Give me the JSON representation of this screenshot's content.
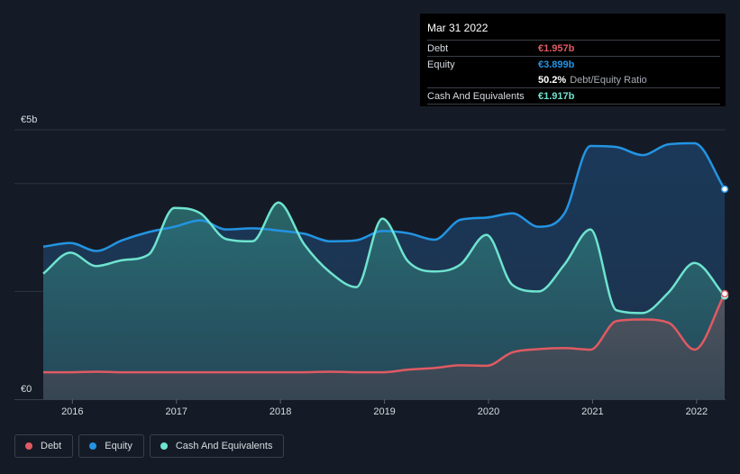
{
  "tooltip": {
    "date": "Mar 31 2022",
    "debt_label": "Debt",
    "debt_value": "€1.957b",
    "equity_label": "Equity",
    "equity_value": "€3.899b",
    "ratio_value": "50.2%",
    "ratio_label": "Debt/Equity Ratio",
    "cash_label": "Cash And Equivalents",
    "cash_value": "€1.917b"
  },
  "legend": {
    "debt": "Debt",
    "equity": "Equity",
    "cash": "Cash And Equivalents"
  },
  "colors": {
    "background": "#151b26",
    "debt": "#e05a62",
    "equity": "#2394e2",
    "cash": "#6fe3cf",
    "grid": "#2e3440"
  },
  "chart_data": {
    "type": "area",
    "title": "",
    "xlabel": "",
    "ylabel": "",
    "ylim": [
      0,
      5
    ],
    "xlim": [
      2015.72,
      2022.27
    ],
    "y_ticks": [
      {
        "value": 0,
        "label": "€0"
      },
      {
        "value": 5,
        "label": "€5b"
      }
    ],
    "y_gridlines": [
      2,
      4,
      5
    ],
    "x_ticks": [
      {
        "value": 2016,
        "label": "2016"
      },
      {
        "value": 2017,
        "label": "2017"
      },
      {
        "value": 2018,
        "label": "2018"
      },
      {
        "value": 2019,
        "label": "2019"
      },
      {
        "value": 2020,
        "label": "2020"
      },
      {
        "value": 2021,
        "label": "2021"
      },
      {
        "value": 2022,
        "label": "2022"
      }
    ],
    "units": "€ billions",
    "series": [
      {
        "name": "Equity",
        "color": "#2394e2",
        "points": [
          [
            2015.72,
            2.83
          ],
          [
            2015.98,
            2.9
          ],
          [
            2016.23,
            2.75
          ],
          [
            2016.48,
            2.95
          ],
          [
            2016.73,
            3.1
          ],
          [
            2016.98,
            3.2
          ],
          [
            2017.23,
            3.32
          ],
          [
            2017.48,
            3.15
          ],
          [
            2017.73,
            3.17
          ],
          [
            2017.98,
            3.13
          ],
          [
            2018.23,
            3.07
          ],
          [
            2018.48,
            2.93
          ],
          [
            2018.73,
            2.95
          ],
          [
            2018.98,
            3.12
          ],
          [
            2019.23,
            3.08
          ],
          [
            2019.48,
            2.96
          ],
          [
            2019.73,
            3.33
          ],
          [
            2019.98,
            3.37
          ],
          [
            2020.23,
            3.45
          ],
          [
            2020.48,
            3.2
          ],
          [
            2020.73,
            3.45
          ],
          [
            2020.98,
            4.7
          ],
          [
            2021.23,
            4.68
          ],
          [
            2021.48,
            4.53
          ],
          [
            2021.73,
            4.73
          ],
          [
            2021.98,
            4.75
          ],
          [
            2022.27,
            3.899
          ]
        ]
      },
      {
        "name": "Cash And Equivalents",
        "color": "#6fe3cf",
        "points": [
          [
            2015.72,
            2.33
          ],
          [
            2015.98,
            2.72
          ],
          [
            2016.23,
            2.47
          ],
          [
            2016.48,
            2.58
          ],
          [
            2016.73,
            2.68
          ],
          [
            2016.98,
            3.55
          ],
          [
            2017.23,
            3.45
          ],
          [
            2017.48,
            2.97
          ],
          [
            2017.73,
            2.93
          ],
          [
            2017.98,
            3.65
          ],
          [
            2018.23,
            2.87
          ],
          [
            2018.48,
            2.35
          ],
          [
            2018.73,
            2.08
          ],
          [
            2018.98,
            3.35
          ],
          [
            2019.23,
            2.55
          ],
          [
            2019.48,
            2.37
          ],
          [
            2019.73,
            2.5
          ],
          [
            2019.98,
            3.05
          ],
          [
            2020.23,
            2.12
          ],
          [
            2020.48,
            2.0
          ],
          [
            2020.73,
            2.5
          ],
          [
            2020.98,
            3.15
          ],
          [
            2021.23,
            1.65
          ],
          [
            2021.48,
            1.6
          ],
          [
            2021.73,
            1.98
          ],
          [
            2021.98,
            2.53
          ],
          [
            2022.27,
            1.917
          ]
        ]
      },
      {
        "name": "Debt",
        "color": "#e05a62",
        "points": [
          [
            2015.72,
            0.5
          ],
          [
            2015.98,
            0.5
          ],
          [
            2016.23,
            0.51
          ],
          [
            2016.48,
            0.5
          ],
          [
            2016.73,
            0.5
          ],
          [
            2016.98,
            0.5
          ],
          [
            2017.23,
            0.5
          ],
          [
            2017.48,
            0.5
          ],
          [
            2017.73,
            0.5
          ],
          [
            2017.98,
            0.5
          ],
          [
            2018.23,
            0.5
          ],
          [
            2018.48,
            0.51
          ],
          [
            2018.73,
            0.5
          ],
          [
            2018.98,
            0.5
          ],
          [
            2019.23,
            0.55
          ],
          [
            2019.48,
            0.58
          ],
          [
            2019.73,
            0.63
          ],
          [
            2019.98,
            0.62
          ],
          [
            2020.23,
            0.87
          ],
          [
            2020.48,
            0.93
          ],
          [
            2020.73,
            0.95
          ],
          [
            2020.98,
            0.92
          ],
          [
            2021.23,
            1.45
          ],
          [
            2021.48,
            1.48
          ],
          [
            2021.73,
            1.42
          ],
          [
            2021.98,
            0.92
          ],
          [
            2022.27,
            1.957
          ]
        ]
      }
    ]
  }
}
